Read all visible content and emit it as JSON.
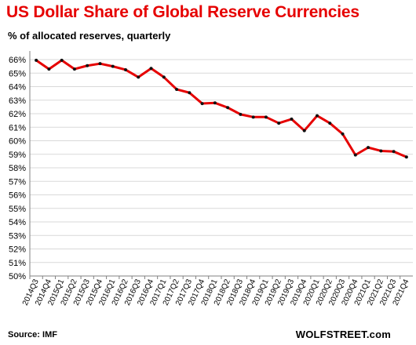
{
  "title": "US Dollar Share of Global  Reserve Currencies",
  "subtitle": "% of allocated reserves, quarterly",
  "source": "Source: IMF",
  "brand": "WOLFSTREET.com",
  "colors": {
    "line": "#e60000",
    "marker": "#111111",
    "grid": "#d9d9d9",
    "title": "#e60000"
  },
  "chart_data": {
    "type": "line",
    "title": "US Dollar Share of Global  Reserve Currencies",
    "subtitle": "% of allocated reserves, quarterly",
    "xlabel": "",
    "ylabel": "",
    "ylim": [
      50,
      66
    ],
    "y_ticks": [
      "50%",
      "51%",
      "52%",
      "53%",
      "54%",
      "55%",
      "56%",
      "57%",
      "58%",
      "59%",
      "60%",
      "61%",
      "62%",
      "63%",
      "64%",
      "65%",
      "66%"
    ],
    "grid": true,
    "legend": "none",
    "categories": [
      "2014Q3",
      "2014Q4",
      "2015Q1",
      "2015Q2",
      "2015Q3",
      "2015Q4",
      "2016Q1",
      "2016Q2",
      "2016Q3",
      "2016Q4",
      "2017Q1",
      "2017Q2",
      "2017Q3",
      "2017Q4",
      "2018Q1",
      "2018Q2",
      "2018Q3",
      "2018Q4",
      "2019Q1",
      "2019Q2",
      "2019Q3",
      "2019Q4",
      "2020Q1",
      "2020Q2",
      "2020Q3",
      "2020Q4",
      "2021Q1",
      "2021Q2",
      "2021Q3",
      "2021Q4"
    ],
    "series": [
      {
        "values": [
          65.95,
          65.3,
          65.95,
          65.3,
          65.55,
          65.7,
          65.5,
          65.25,
          64.7,
          65.35,
          64.7,
          63.8,
          63.55,
          62.75,
          62.8,
          62.45,
          61.95,
          61.75,
          61.75,
          61.3,
          61.6,
          60.75,
          61.85,
          61.3,
          60.5,
          58.95,
          59.5,
          59.25,
          59.2,
          58.8
        ]
      }
    ]
  }
}
